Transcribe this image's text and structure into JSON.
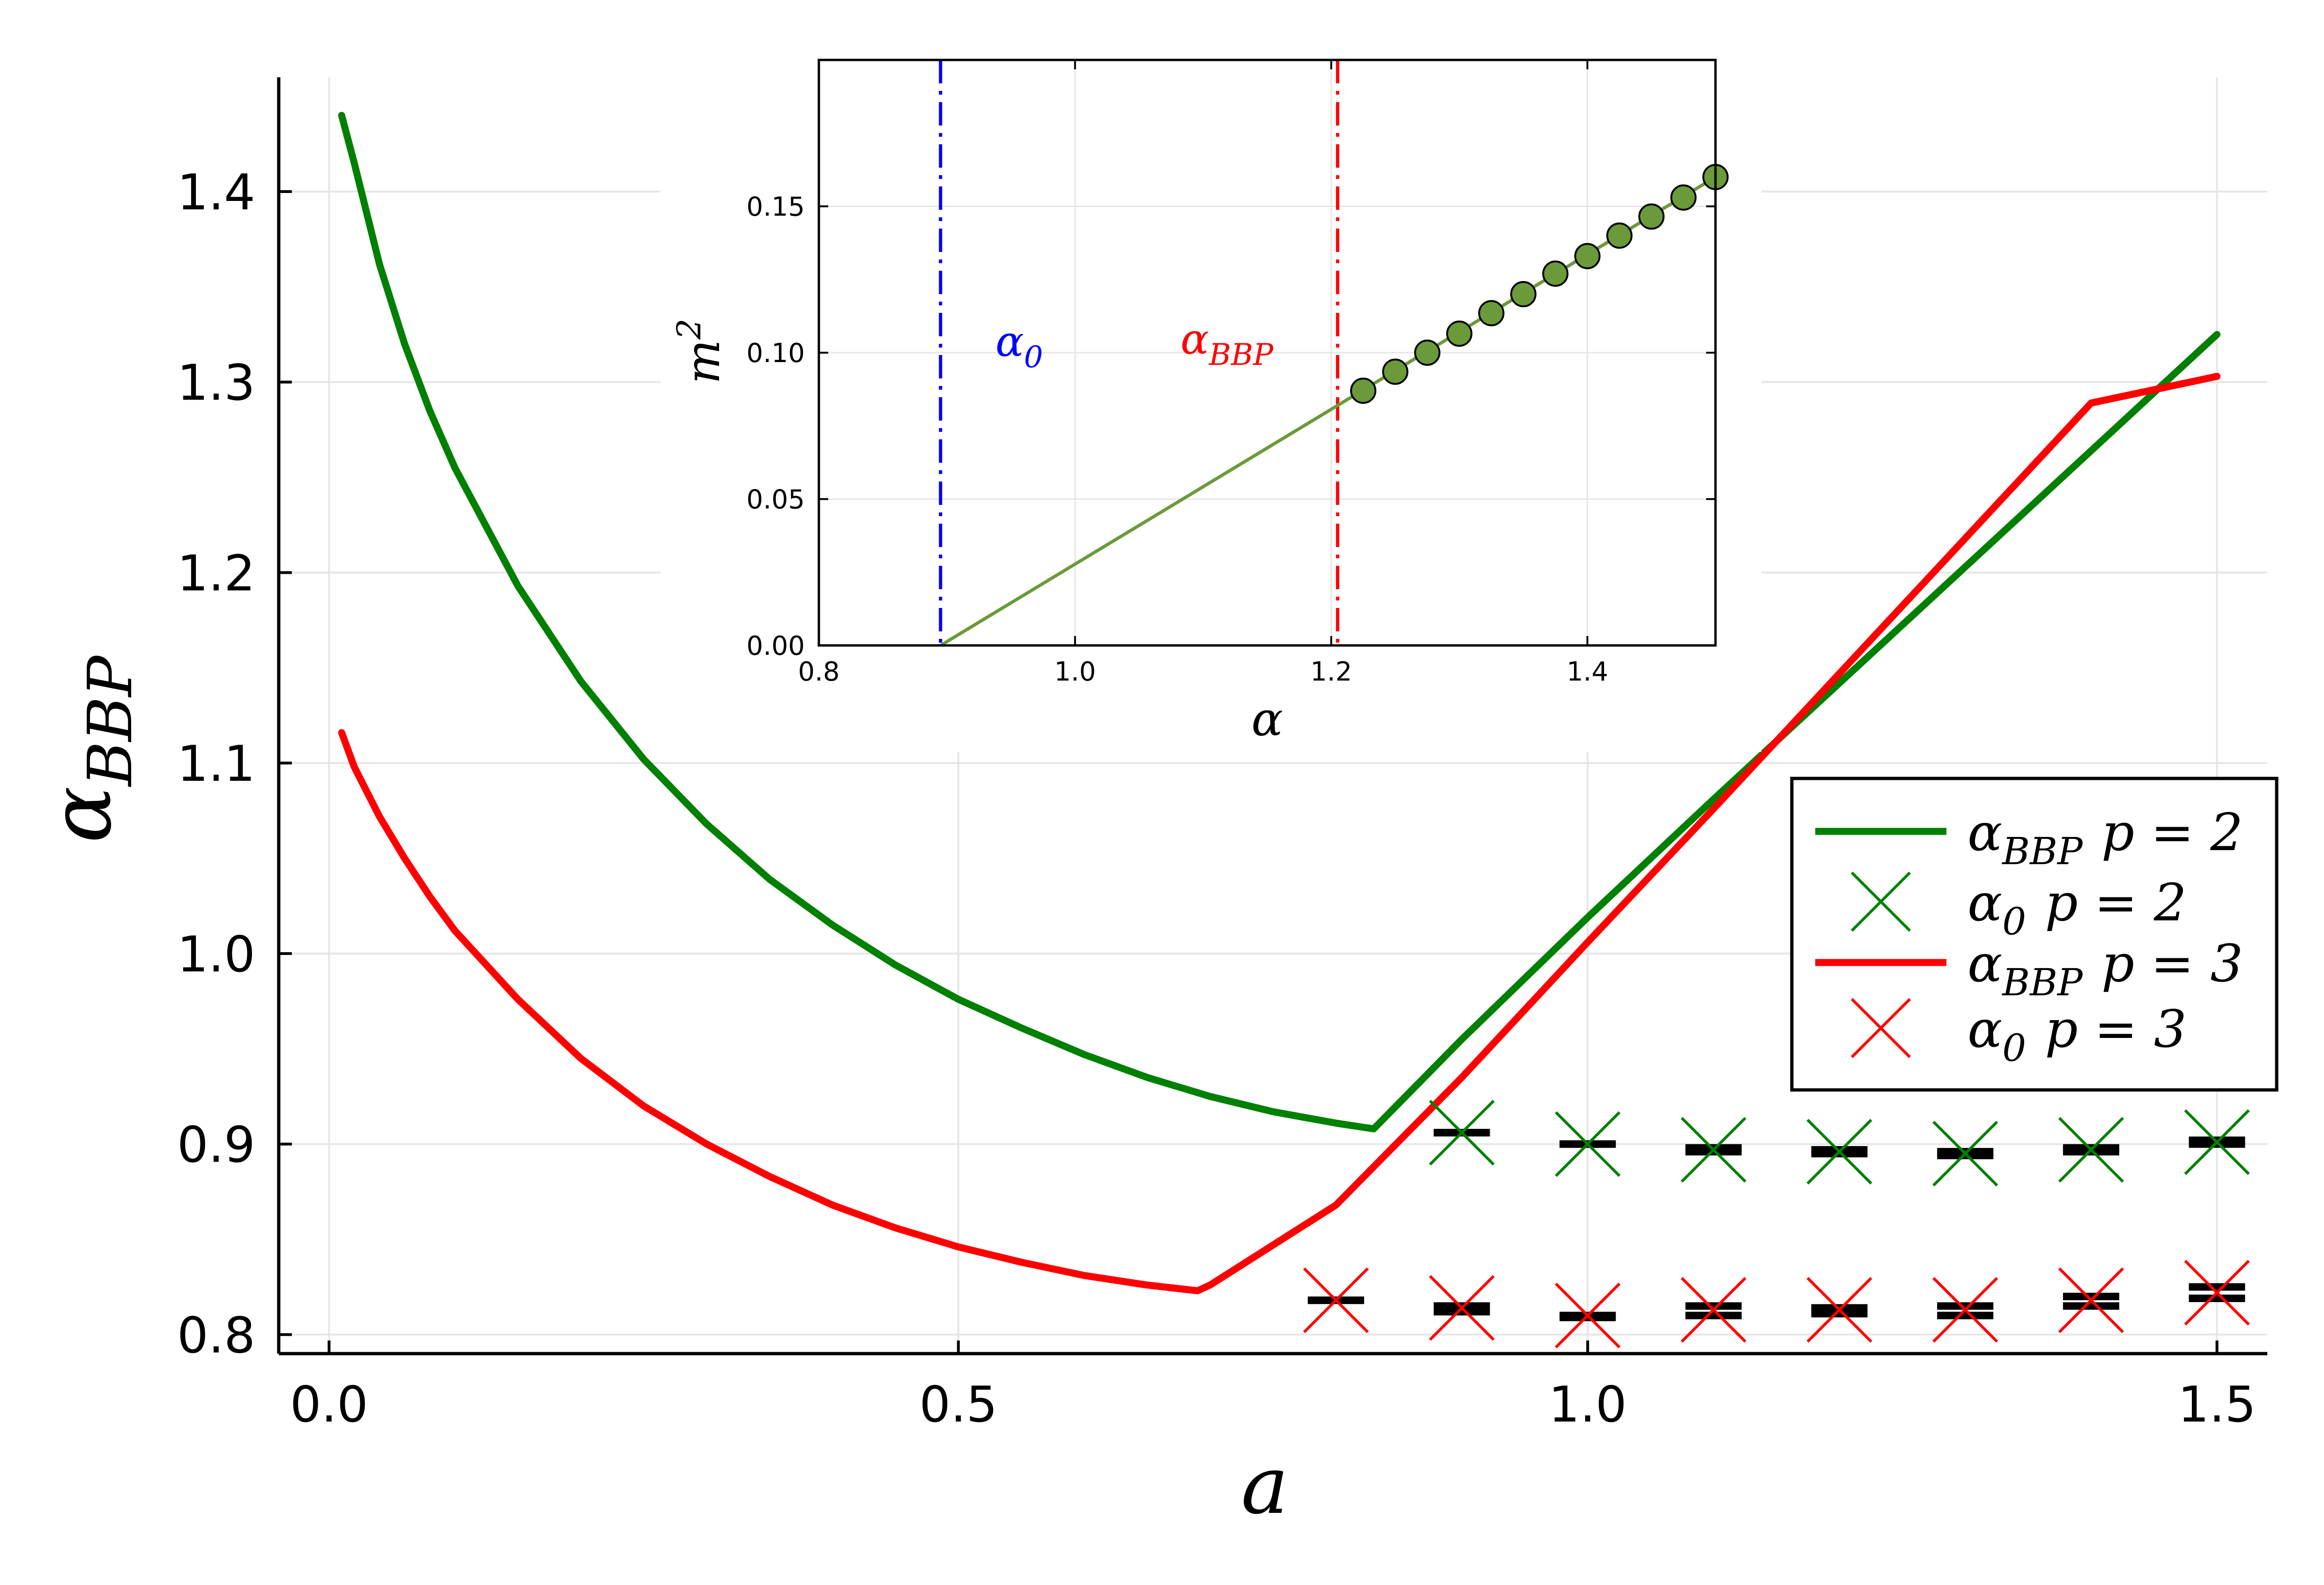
{
  "chart_data": [
    {
      "type": "line",
      "role": "main",
      "xlabel": "a",
      "ylabel": {
        "base": "α",
        "sub": "BBP"
      },
      "xlim": [
        -0.04,
        1.54
      ],
      "ylim": [
        0.79,
        1.46
      ],
      "xticks": [
        0.0,
        0.5,
        1.0,
        1.5
      ],
      "xtick_labels": [
        "0.0",
        "0.5",
        "1.0",
        "1.5"
      ],
      "yticks": [
        0.8,
        0.9,
        1.0,
        1.1,
        1.2,
        1.3,
        1.4
      ],
      "ytick_labels": [
        "0.8",
        "0.9",
        "1.0",
        "1.1",
        "1.2",
        "1.3",
        "1.4"
      ],
      "grid": true,
      "series": [
        {
          "name": "α_BBP p = 2",
          "kind": "line",
          "color": "#008000",
          "x": [
            0.01,
            0.02,
            0.04,
            0.06,
            0.08,
            0.1,
            0.15,
            0.2,
            0.25,
            0.3,
            0.35,
            0.4,
            0.45,
            0.5,
            0.55,
            0.6,
            0.65,
            0.7,
            0.75,
            0.8,
            0.83,
            0.9,
            1.0,
            1.1,
            1.2,
            1.3,
            1.4,
            1.5
          ],
          "y": [
            1.44,
            1.415,
            1.362,
            1.32,
            1.285,
            1.255,
            1.193,
            1.143,
            1.102,
            1.068,
            1.039,
            1.015,
            0.994,
            0.976,
            0.961,
            0.947,
            0.935,
            0.925,
            0.917,
            0.911,
            0.908,
            0.955,
            1.019,
            1.081,
            1.142,
            1.203,
            1.264,
            1.325
          ]
        },
        {
          "name": "α0 p = 2",
          "kind": "markers",
          "marker": "x",
          "color": "#008000",
          "x": [
            0.9,
            1.0,
            1.1,
            1.2,
            1.3,
            1.4,
            1.5
          ],
          "y": [
            0.906,
            0.9,
            0.897,
            0.896,
            0.895,
            0.897,
            0.901
          ]
        },
        {
          "name": "α_BBP p = 3",
          "kind": "line",
          "color": "#ff0000",
          "x": [
            0.01,
            0.02,
            0.04,
            0.06,
            0.08,
            0.1,
            0.15,
            0.2,
            0.25,
            0.3,
            0.35,
            0.4,
            0.45,
            0.5,
            0.55,
            0.6,
            0.65,
            0.69,
            0.7,
            0.8,
            0.9,
            1.0,
            1.1,
            1.2,
            1.3,
            1.4,
            1.5
          ],
          "y": [
            1.116,
            1.098,
            1.072,
            1.05,
            1.03,
            1.012,
            0.976,
            0.945,
            0.92,
            0.9,
            0.883,
            0.868,
            0.856,
            0.846,
            0.838,
            0.831,
            0.826,
            0.823,
            0.826,
            0.868,
            0.935,
            1.006,
            1.076,
            1.147,
            1.218,
            1.289,
            1.303
          ]
        },
        {
          "name": "α0 p = 3",
          "kind": "markers",
          "marker": "x",
          "color": "#ff0000",
          "x": [
            0.8,
            0.9,
            1.0,
            1.1,
            1.2,
            1.3,
            1.4,
            1.5
          ],
          "y": [
            0.818,
            0.814,
            0.81,
            0.813,
            0.813,
            0.813,
            0.818,
            0.822
          ]
        }
      ],
      "error_bars": {
        "color": "#000000",
        "p2": {
          "x": [
            0.9,
            1.0,
            1.1,
            1.2,
            1.3,
            1.4,
            1.5
          ],
          "lo": [
            0.906,
            0.9,
            0.896,
            0.895,
            0.894,
            0.896,
            0.9
          ],
          "hi": [
            0.906,
            0.9,
            0.898,
            0.897,
            0.896,
            0.898,
            0.902
          ]
        },
        "p3": {
          "x": [
            0.8,
            0.9,
            1.0,
            1.1,
            1.2,
            1.3,
            1.4,
            1.5
          ],
          "lo": [
            0.818,
            0.812,
            0.809,
            0.81,
            0.811,
            0.81,
            0.815,
            0.819
          ],
          "hi": [
            0.818,
            0.815,
            0.81,
            0.815,
            0.814,
            0.815,
            0.82,
            0.825
          ]
        }
      },
      "legend": {
        "placement": "right",
        "entries": [
          {
            "base": "α",
            "sub": "BBP",
            "tail": "p = 2",
            "color": "#008000",
            "symbol": "line"
          },
          {
            "base": "α",
            "sub": "0",
            "tail": "p = 2",
            "color": "#008000",
            "symbol": "x"
          },
          {
            "base": "α",
            "sub": "BBP",
            "tail": "p = 3",
            "color": "#ff0000",
            "symbol": "line"
          },
          {
            "base": "α",
            "sub": "0",
            "tail": "p = 3",
            "color": "#ff0000",
            "symbol": "x"
          }
        ]
      }
    },
    {
      "type": "line",
      "role": "inset",
      "placement": "top-center",
      "xlabel": "α",
      "ylabel": {
        "base": "m",
        "sup": "2"
      },
      "xlim": [
        0.8,
        1.5
      ],
      "ylim": [
        0.0,
        0.2
      ],
      "xticks": [
        0.8,
        1.0,
        1.2,
        1.4
      ],
      "xtick_labels": [
        "0.8",
        "1.0",
        "1.2",
        "1.4"
      ],
      "yticks": [
        0.0,
        0.05,
        0.1,
        0.15
      ],
      "ytick_labels": [
        "0.00",
        "0.05",
        "0.10",
        "0.15"
      ],
      "grid": true,
      "vlines": [
        {
          "x": 0.895,
          "color": "#0000ff",
          "style": "dashdot",
          "base": "α",
          "sub": "0"
        },
        {
          "x": 1.205,
          "color": "#ff0000",
          "style": "dashdot",
          "base": "α",
          "sub": "BBP"
        }
      ],
      "series": [
        {
          "name": "m2 fit",
          "kind": "line",
          "color": "#6b9a3a",
          "x": [
            0.895,
            1.5
          ],
          "y": [
            0.0,
            0.16
          ]
        },
        {
          "name": "m2 points",
          "kind": "markers",
          "marker": "circle",
          "color": "#6b9a3a",
          "x": [
            1.225,
            1.25,
            1.275,
            1.3,
            1.325,
            1.35,
            1.375,
            1.4,
            1.425,
            1.45,
            1.475,
            1.5
          ],
          "y": [
            0.087,
            0.0935,
            0.1,
            0.1065,
            0.1135,
            0.12,
            0.127,
            0.133,
            0.14,
            0.1465,
            0.153,
            0.16
          ]
        }
      ]
    }
  ]
}
